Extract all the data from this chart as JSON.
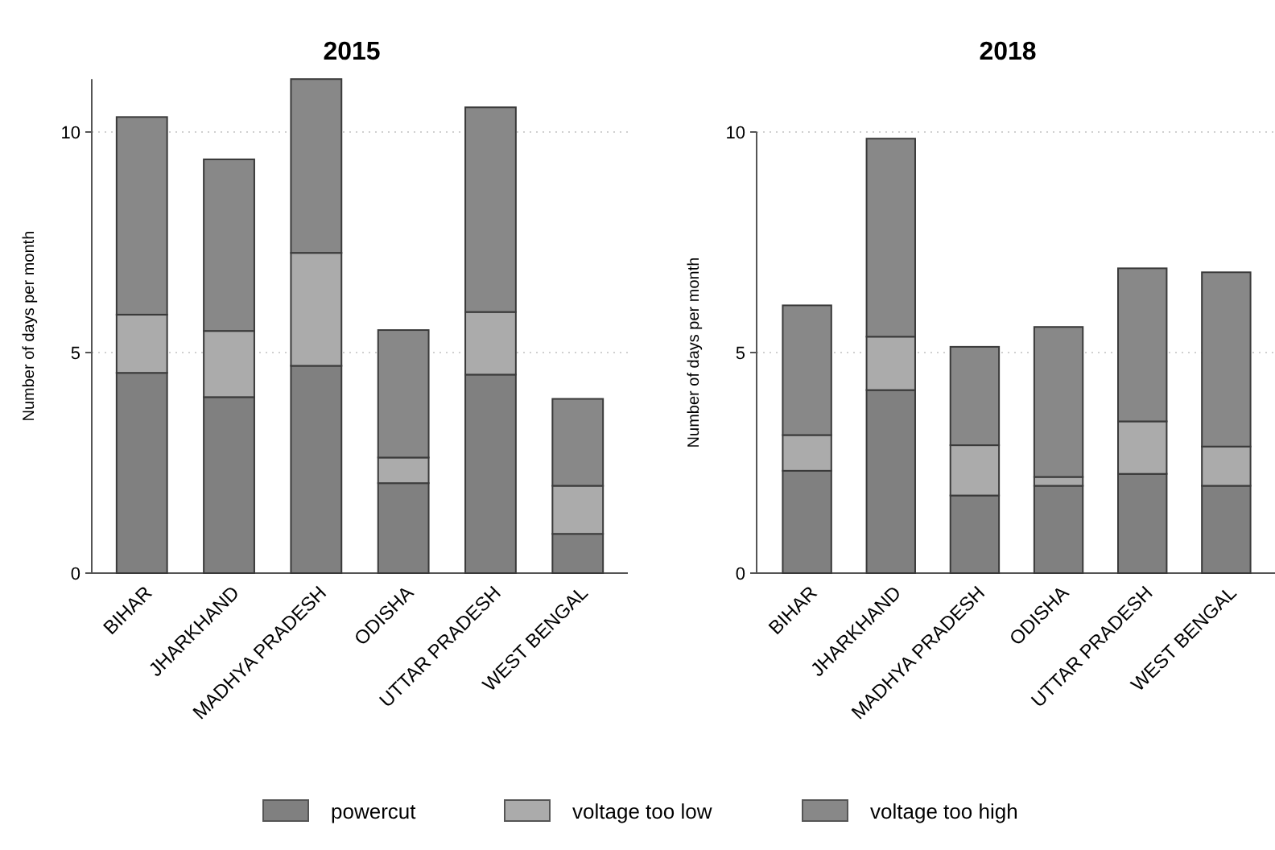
{
  "chart_data": [
    {
      "type": "bar",
      "title": "2015",
      "ylabel": "Number of days per month",
      "stacked": true,
      "grid": "y",
      "legend": "bottom",
      "categories": [
        "BIHAR",
        "JHARKHAND",
        "MADHYA PRADESH",
        "ODISHA",
        "UTTAR PRADESH",
        "WEST BENGAL"
      ],
      "series": [
        {
          "name": "powercut",
          "color": "#808080",
          "values": [
            4.54,
            3.99,
            4.7,
            2.04,
            4.5,
            0.89
          ]
        },
        {
          "name": "voltage too low",
          "color": "#ababab",
          "values": [
            1.32,
            1.5,
            2.56,
            0.58,
            1.42,
            1.09
          ]
        },
        {
          "name": "voltage too high",
          "color": "#888888",
          "values": [
            4.48,
            3.89,
            3.94,
            2.89,
            4.64,
            1.97
          ]
        }
      ],
      "ylim": [
        0,
        11.2
      ],
      "yticks": [
        0,
        5,
        10
      ]
    },
    {
      "type": "bar",
      "title": "2018",
      "ylabel": "Number of days per month",
      "stacked": true,
      "grid": "y",
      "categories": [
        "BIHAR",
        "JHARKHAND",
        "MADHYA PRADESH",
        "ODISHA",
        "UTTAR PRADESH",
        "WEST BENGAL"
      ],
      "series": [
        {
          "color": "#808080",
          "values": [
            2.32,
            4.15,
            1.76,
            1.98,
            2.25,
            1.98
          ]
        },
        {
          "color": "#ababab",
          "values": [
            0.81,
            1.21,
            1.14,
            0.2,
            1.19,
            0.89
          ]
        },
        {
          "color": "#888888",
          "values": [
            2.94,
            4.49,
            2.23,
            3.4,
            3.47,
            3.95
          ]
        }
      ],
      "ylim": [
        0,
        10
      ],
      "yticks": [
        0,
        5,
        10
      ]
    }
  ]
}
